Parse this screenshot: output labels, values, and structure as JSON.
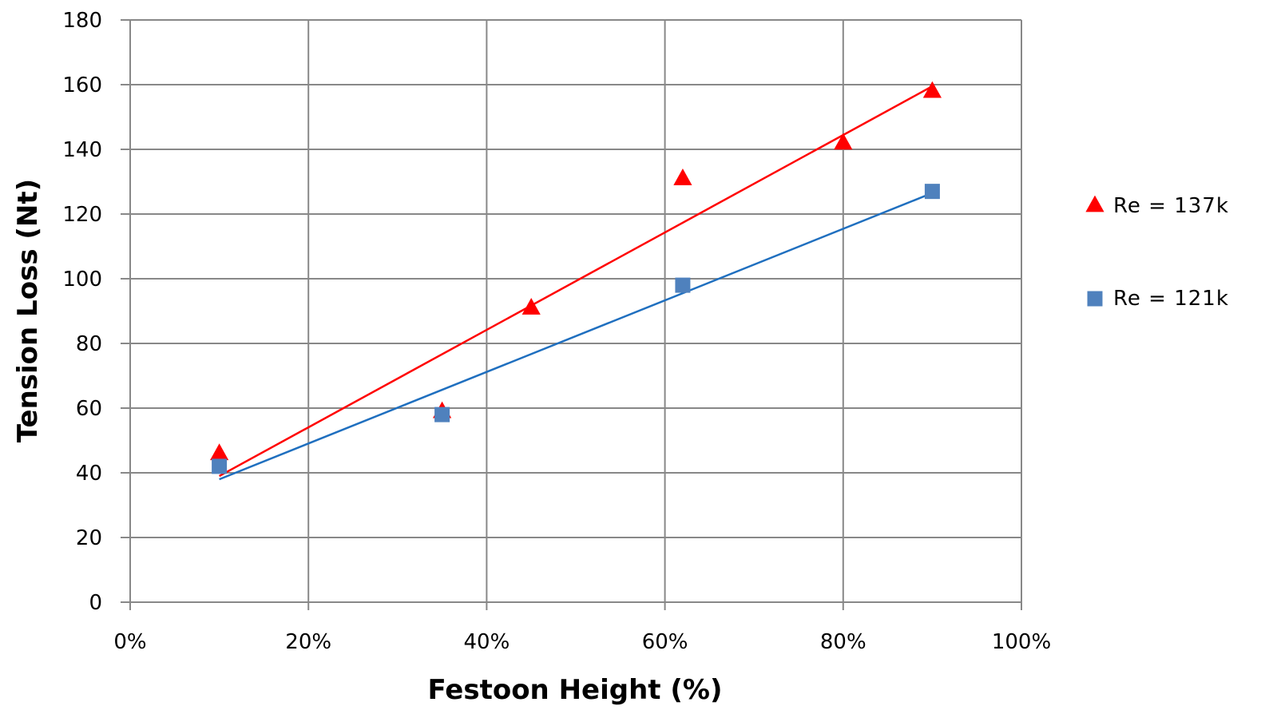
{
  "chart_data": {
    "type": "scatter",
    "xlabel": "Festoon Height (%)",
    "ylabel": "Tension Loss (Nt)",
    "xlim": [
      0,
      100
    ],
    "ylim": [
      0,
      180
    ],
    "x_ticks": [
      "0%",
      "20%",
      "40%",
      "60%",
      "80%",
      "100%"
    ],
    "y_ticks": [
      "0",
      "20",
      "40",
      "60",
      "80",
      "100",
      "120",
      "140",
      "160",
      "180"
    ],
    "grid": true,
    "legend_position": "right",
    "series": [
      {
        "name": "Re = 137k",
        "marker": "triangle",
        "color": "#ff0000",
        "points": [
          {
            "x": 10,
            "y": 46
          },
          {
            "x": 35,
            "y": 59
          },
          {
            "x": 45,
            "y": 91
          },
          {
            "x": 62,
            "y": 131
          },
          {
            "x": 80,
            "y": 142
          },
          {
            "x": 90,
            "y": 158
          }
        ],
        "trendline": {
          "x": [
            10,
            90
          ],
          "y": [
            39,
            159.5
          ]
        }
      },
      {
        "name": "Re = 121k",
        "marker": "square",
        "color": "#4f81bd",
        "trend_color": "#1f6fbf",
        "points": [
          {
            "x": 10,
            "y": 42
          },
          {
            "x": 35,
            "y": 58
          },
          {
            "x": 62,
            "y": 98
          },
          {
            "x": 90,
            "y": 127
          }
        ],
        "trendline": {
          "x": [
            10,
            90
          ],
          "y": [
            38,
            126.5
          ]
        }
      }
    ]
  }
}
